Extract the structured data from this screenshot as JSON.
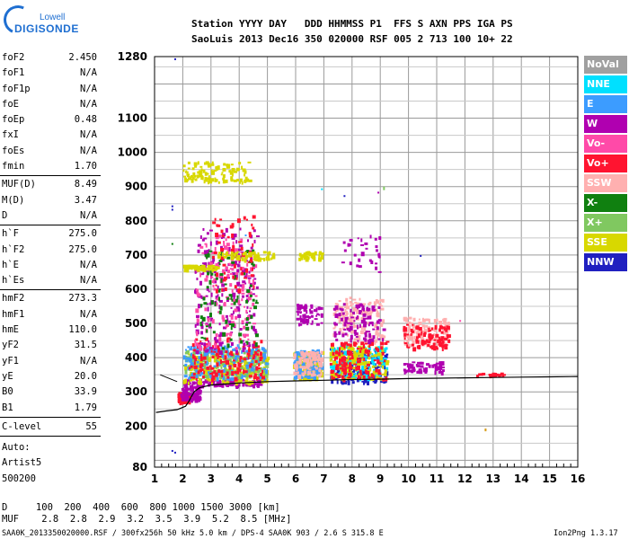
{
  "header": {
    "line1": "Station YYYY DAY   DDD HHMMSS P1  FFS S AXN PPS IGA PS",
    "line2": "SaoLuis 2013 Dec16 350 020000 RSF 005 2 713 100 10+ 22"
  },
  "logo": {
    "brand1": "Lowell",
    "brand2": "DIGISONDE"
  },
  "params": [
    {
      "label": "foF2",
      "value": "2.450"
    },
    {
      "label": "foF1",
      "value": "N/A"
    },
    {
      "label": "foF1p",
      "value": "N/A"
    },
    {
      "label": "foE",
      "value": "N/A"
    },
    {
      "label": "foEp",
      "value": "0.48"
    },
    {
      "label": "fxI",
      "value": "N/A"
    },
    {
      "label": "foEs",
      "value": "N/A"
    },
    {
      "label": "fmin",
      "value": "1.70"
    },
    {
      "label": "MUF(D)",
      "value": "8.49"
    },
    {
      "label": "M(D)",
      "value": "3.47"
    },
    {
      "label": "D",
      "value": "N/A"
    },
    {
      "label": "h`F",
      "value": "275.0"
    },
    {
      "label": "h`F2",
      "value": "275.0"
    },
    {
      "label": "h`E",
      "value": "N/A"
    },
    {
      "label": "h`Es",
      "value": "N/A"
    },
    {
      "label": "hmF2",
      "value": "273.3"
    },
    {
      "label": "hmF1",
      "value": "N/A"
    },
    {
      "label": "hmE",
      "value": "110.0"
    },
    {
      "label": "yF2",
      "value": "31.5"
    },
    {
      "label": "yF1",
      "value": "N/A"
    },
    {
      "label": "yE",
      "value": "20.0"
    },
    {
      "label": "B0",
      "value": "33.9"
    },
    {
      "label": "B1",
      "value": "1.79"
    },
    {
      "label": "C-level",
      "value": "55"
    }
  ],
  "auto": {
    "line1": "Auto:",
    "line2": "Artist5",
    "line3": "500200"
  },
  "legend": [
    {
      "label": "NoVal",
      "color": "#a0a0a0"
    },
    {
      "label": "NNE",
      "color": "#00e0ff"
    },
    {
      "label": "E",
      "color": "#3c9cff"
    },
    {
      "label": "W",
      "color": "#b000b0"
    },
    {
      "label": "Vo-",
      "color": "#ff4aa8"
    },
    {
      "label": "Vo+",
      "color": "#ff1430"
    },
    {
      "label": "SSW",
      "color": "#ffb0b0"
    },
    {
      "label": "X-",
      "color": "#108010"
    },
    {
      "label": "X+",
      "color": "#80c860"
    },
    {
      "label": "SSE",
      "color": "#d8d800"
    },
    {
      "label": "NNW",
      "color": "#2020c0"
    }
  ],
  "footer": {
    "d_line": "D     100  200  400  600  800 1000 1500 3000 [km]",
    "muf_line": "MUF    2.8  2.8  2.9  3.2  3.5  3.9  5.2  8.5 [MHz]",
    "info": "SAA0K_2013350020000.RSF / 300fx256h 50 kHz 5.0 km / DPS-4 SAA0K 903 / 2.6 S 315.8 E",
    "version": "Ion2Png 1.3.17"
  },
  "chart_data": {
    "type": "scatter",
    "xlim": [
      1,
      16
    ],
    "ylim": [
      80,
      1280
    ],
    "x_ticks": [
      "1",
      "2",
      "3",
      "4",
      "5",
      "6",
      "7",
      "8",
      "9",
      "10",
      "11",
      "12",
      "13",
      "14",
      "15",
      "16"
    ],
    "y_ticks": [
      "80",
      "200",
      "300",
      "400",
      "500",
      "600",
      "700",
      "800",
      "900",
      "1000",
      "1100",
      "1280"
    ],
    "grid": true,
    "legend_position": "right",
    "clusters": [
      {
        "x": [
          1.8,
          2.2
        ],
        "y": [
          270,
          300
        ],
        "color": "#ff1430",
        "n": 90
      },
      {
        "x": [
          1.9,
          2.6
        ],
        "y": [
          280,
          320
        ],
        "color": "#b000b0",
        "n": 70
      },
      {
        "x": [
          2.0,
          4.8
        ],
        "y": [
          320,
          340
        ],
        "color": "#b000b0",
        "n": 120
      },
      {
        "x": [
          2.0,
          5.0
        ],
        "y": [
          330,
          420
        ],
        "color": "#d8d800",
        "n": 260
      },
      {
        "x": [
          2.0,
          5.0
        ],
        "y": [
          340,
          430
        ],
        "color": "#80c860",
        "n": 160
      },
      {
        "x": [
          2.0,
          5.0
        ],
        "y": [
          340,
          440
        ],
        "color": "#3c9cff",
        "n": 150
      },
      {
        "x": [
          2.2,
          4.8
        ],
        "y": [
          340,
          460
        ],
        "color": "#ff1430",
        "n": 130
      },
      {
        "x": [
          2.4,
          4.6
        ],
        "y": [
          420,
          780
        ],
        "color": "#b000b0",
        "n": 220
      },
      {
        "x": [
          2.4,
          4.6
        ],
        "y": [
          430,
          760
        ],
        "color": "#ff4aa8",
        "n": 150
      },
      {
        "x": [
          2.6,
          4.6
        ],
        "y": [
          430,
          720
        ],
        "color": "#108010",
        "n": 90
      },
      {
        "x": [
          3.0,
          4.5
        ],
        "y": [
          600,
          820
        ],
        "color": "#ff1430",
        "n": 60
      },
      {
        "x": [
          2.0,
          3.2
        ],
        "y": [
          660,
          672
        ],
        "color": "#d8d800",
        "n": 60
      },
      {
        "x": [
          3.2,
          5.2
        ],
        "y": [
          690,
          712
        ],
        "color": "#d8d800",
        "n": 60
      },
      {
        "x": [
          2.0,
          4.4
        ],
        "y": [
          915,
          975
        ],
        "color": "#d8d800",
        "n": 110
      },
      {
        "x": [
          5.9,
          6.9
        ],
        "y": [
          340,
          420
        ],
        "color": "#d8d800",
        "n": 160
      },
      {
        "x": [
          5.9,
          6.9
        ],
        "y": [
          345,
          425
        ],
        "color": "#3c9cff",
        "n": 90
      },
      {
        "x": [
          5.9,
          6.9
        ],
        "y": [
          350,
          420
        ],
        "color": "#ffb0b0",
        "n": 90
      },
      {
        "x": [
          6.0,
          6.9
        ],
        "y": [
          500,
          560
        ],
        "color": "#b000b0",
        "n": 60
      },
      {
        "x": [
          6.1,
          6.9
        ],
        "y": [
          690,
          712
        ],
        "color": "#d8d800",
        "n": 40
      },
      {
        "x": [
          7.2,
          9.2
        ],
        "y": [
          330,
          430
        ],
        "color": "#2020c0",
        "n": 160
      },
      {
        "x": [
          7.2,
          9.2
        ],
        "y": [
          340,
          440
        ],
        "color": "#00e0ff",
        "n": 140
      },
      {
        "x": [
          7.2,
          9.2
        ],
        "y": [
          340,
          440
        ],
        "color": "#d8d800",
        "n": 160
      },
      {
        "x": [
          7.2,
          9.2
        ],
        "y": [
          340,
          450
        ],
        "color": "#ff1430",
        "n": 120
      },
      {
        "x": [
          7.3,
          9.1
        ],
        "y": [
          450,
          580
        ],
        "color": "#ffb0b0",
        "n": 140
      },
      {
        "x": [
          7.3,
          9.1
        ],
        "y": [
          450,
          560
        ],
        "color": "#b000b0",
        "n": 100
      },
      {
        "x": [
          7.4,
          9.0
        ],
        "y": [
          650,
          760
        ],
        "color": "#b000b0",
        "n": 30
      },
      {
        "x": [
          9.8,
          11.4
        ],
        "y": [
          440,
          520
        ],
        "color": "#ffb0b0",
        "n": 120
      },
      {
        "x": [
          9.8,
          11.4
        ],
        "y": [
          430,
          500
        ],
        "color": "#ff1430",
        "n": 90
      },
      {
        "x": [
          9.8,
          11.2
        ],
        "y": [
          360,
          390
        ],
        "color": "#b000b0",
        "n": 60
      },
      {
        "x": [
          12.4,
          13.4
        ],
        "y": [
          350,
          358
        ],
        "color": "#ff1430",
        "n": 20
      }
    ],
    "trace": [
      [
        1.05,
        240
      ],
      [
        1.4,
        244
      ],
      [
        1.8,
        248
      ],
      [
        2.1,
        258
      ],
      [
        2.2,
        270
      ],
      [
        2.3,
        285
      ],
      [
        2.4,
        300
      ],
      [
        2.6,
        312
      ],
      [
        3.0,
        320
      ],
      [
        4.0,
        326
      ],
      [
        5.0,
        330
      ],
      [
        6.0,
        332
      ],
      [
        7.0,
        334
      ],
      [
        8.0,
        336
      ],
      [
        9.0,
        337
      ],
      [
        10.0,
        339
      ],
      [
        11.0,
        340
      ],
      [
        12.0,
        341
      ],
      [
        13.0,
        342
      ],
      [
        14.0,
        343
      ],
      [
        15.0,
        344
      ],
      [
        16.0,
        345
      ]
    ]
  }
}
